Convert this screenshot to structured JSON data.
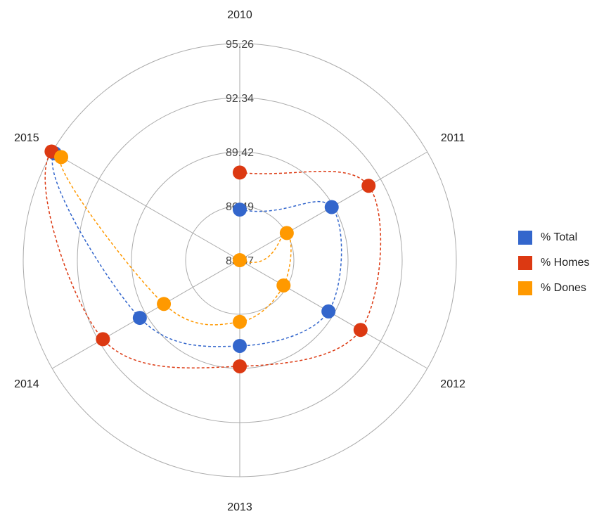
{
  "chart_data": {
    "type": "radar",
    "categories": [
      "2010",
      "2011",
      "2012",
      "2013",
      "2014",
      "2015"
    ],
    "radial_ticks": [
      "83.57",
      "86.49",
      "89.42",
      "92.34",
      "95.26"
    ],
    "rmin": 83.57,
    "rmax": 95.26,
    "grid": true,
    "legend_position": "right",
    "series": [
      {
        "name": "% Total",
        "color": "#3366cc",
        "values": [
          86.3,
          89.3,
          89.1,
          88.2,
          89.8,
          95.1
        ]
      },
      {
        "name": "% Homes",
        "color": "#dc3912",
        "values": [
          88.3,
          91.6,
          91.1,
          89.3,
          92.1,
          95.3
        ]
      },
      {
        "name": "% Dones",
        "color": "#ff9900",
        "values": [
          83.5,
          86.5,
          86.3,
          86.9,
          88.3,
          94.7
        ]
      }
    ]
  }
}
